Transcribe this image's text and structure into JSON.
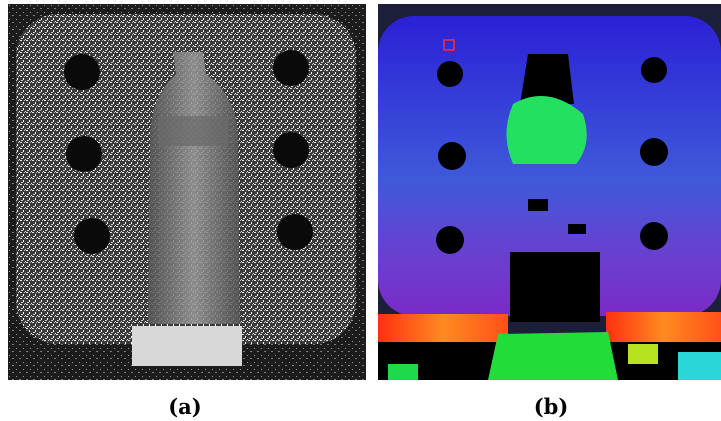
{
  "figure": {
    "captions": {
      "a": "(a)",
      "b": "(b)"
    }
  },
  "colors": {
    "speckle_bg": "#0b0b0b",
    "speckle_board": "#8c8c8c",
    "depth_bg": "#2a2fd8",
    "depth_near": "#ff4a1a",
    "depth_mid": "#1dde45",
    "depth_far": "#3a2ad0",
    "hole": "#000000"
  },
  "panels": [
    {
      "id": "a",
      "content": "speckle-pattern-image"
    },
    {
      "id": "b",
      "content": "depth-map-image"
    }
  ]
}
